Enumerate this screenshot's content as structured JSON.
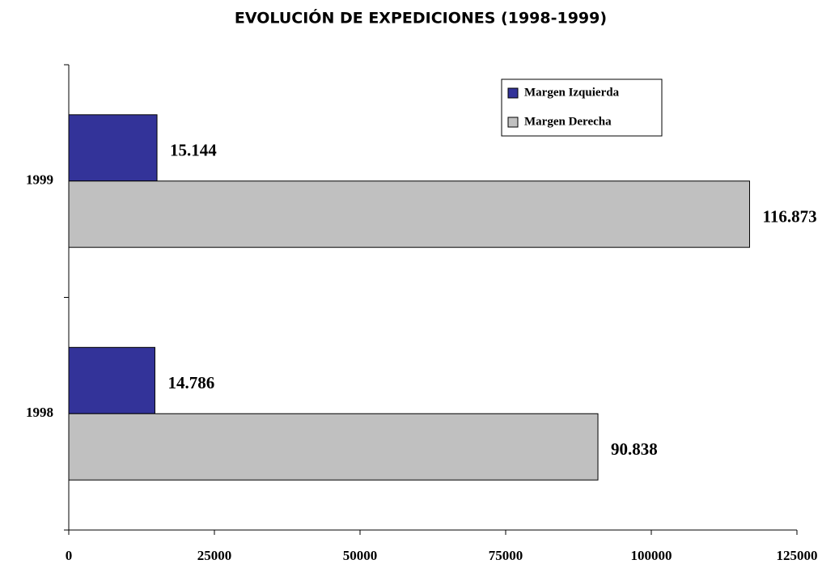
{
  "chart_data": {
    "type": "bar",
    "orientation": "horizontal",
    "title": "EVOLUCIÓN DE EXPEDICIONES (1998-1999)",
    "categories": [
      "1998",
      "1999"
    ],
    "series": [
      {
        "name": "Margen Izquierda",
        "color": "#333399",
        "values": [
          14786,
          15144
        ],
        "value_labels": [
          "14.786",
          "15.144"
        ]
      },
      {
        "name": "Margen Derecha",
        "color": "#c0c0c0",
        "values": [
          90838,
          116873
        ],
        "value_labels": [
          "90.838",
          "116.873"
        ]
      }
    ],
    "xlim": [
      0,
      125000
    ],
    "xticks": [
      0,
      25000,
      50000,
      75000,
      100000,
      125000
    ],
    "legend": "upper right"
  }
}
